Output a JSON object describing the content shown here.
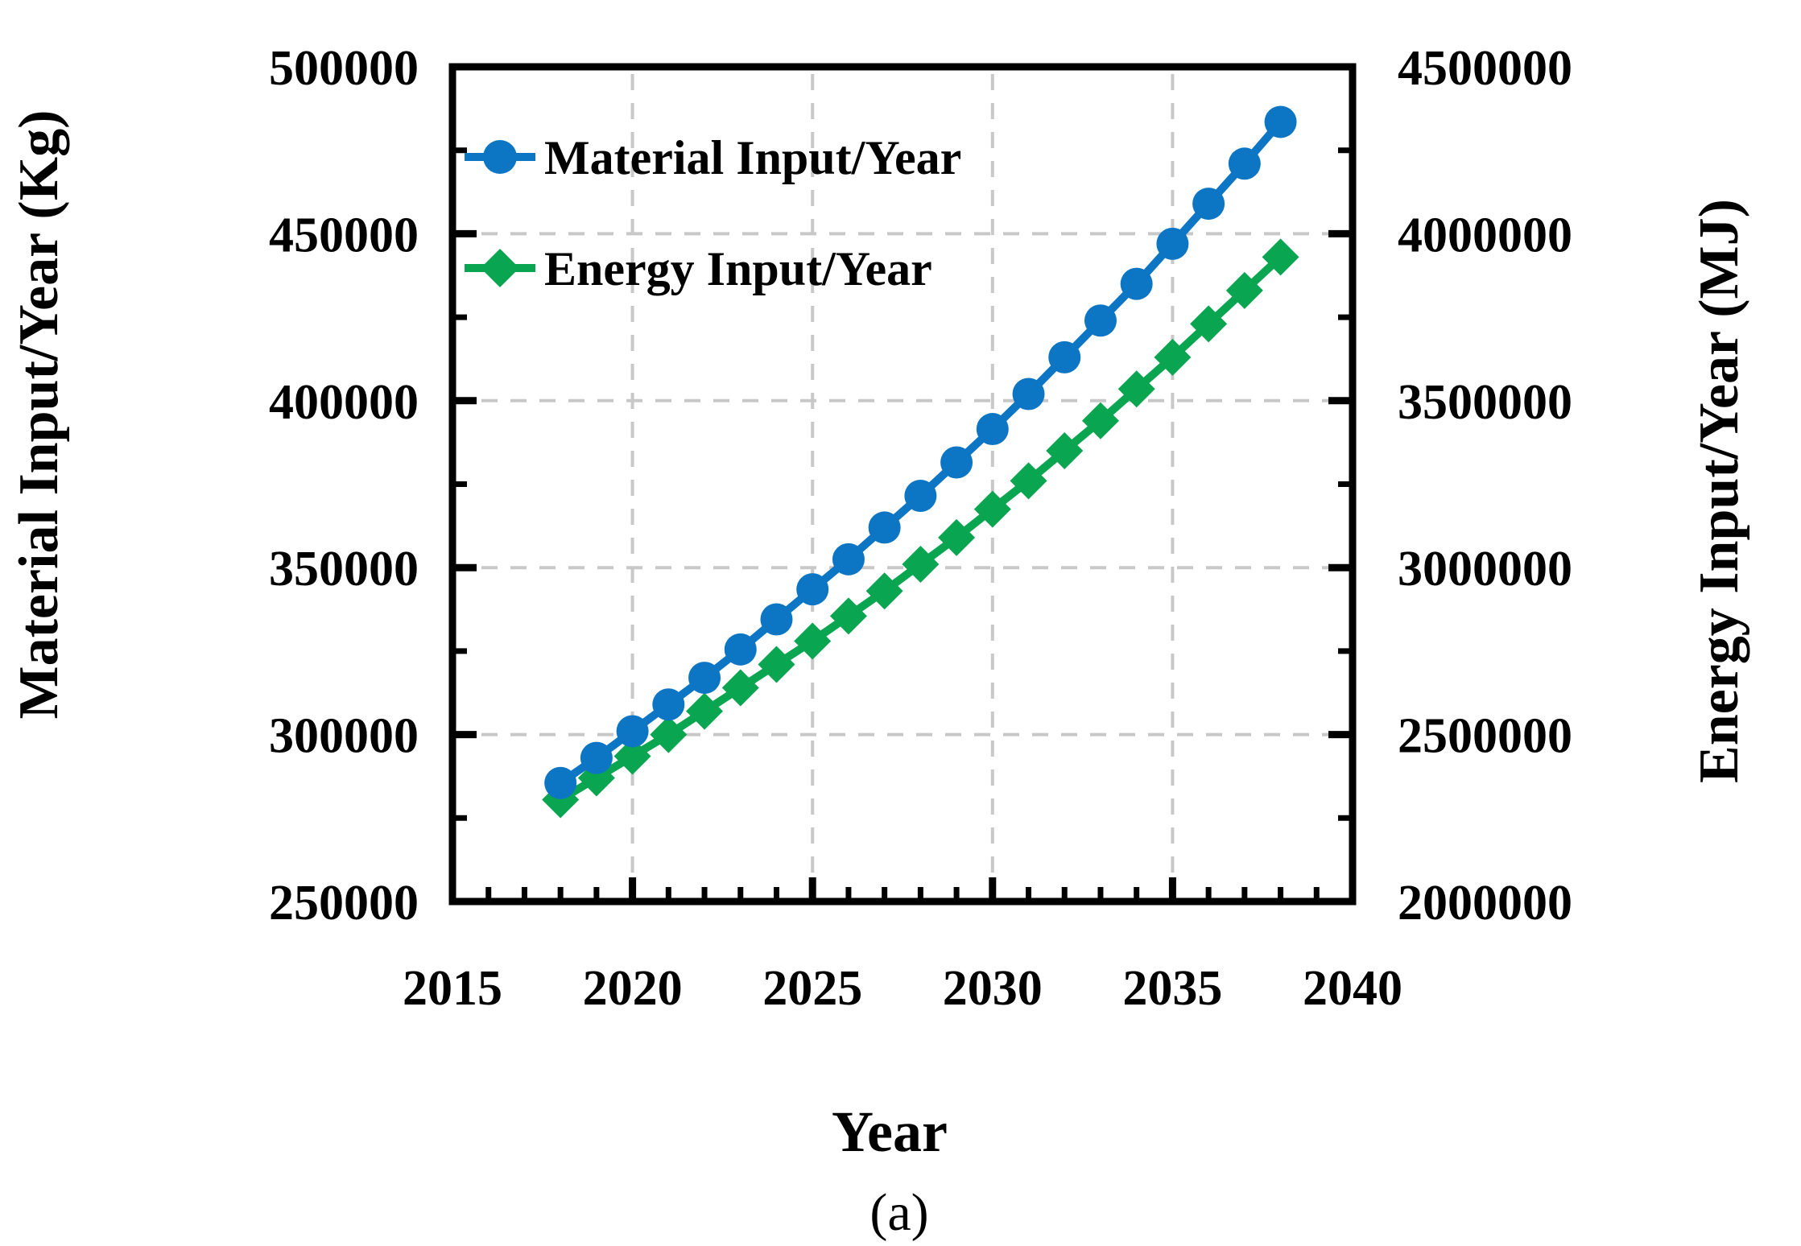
{
  "figure": {
    "caption": "(a)"
  },
  "chart_data": {
    "type": "line",
    "title": "",
    "xlabel": "Year",
    "ylabel_left": "Material Input/Year (Kg)",
    "ylabel_right": "Energy Input/Year (MJ)",
    "x": [
      2018,
      2019,
      2020,
      2021,
      2022,
      2023,
      2024,
      2025,
      2026,
      2027,
      2028,
      2029,
      2030,
      2031,
      2032,
      2033,
      2034,
      2035,
      2036,
      2037,
      2038
    ],
    "series": [
      {
        "name": "Material Input/Year",
        "axis": "left",
        "unit": "Kg",
        "color": "#0d76c4",
        "marker": "circle",
        "values": [
          285500,
          293000,
          301000,
          309000,
          317000,
          325500,
          334500,
          343500,
          352500,
          362000,
          371500,
          381500,
          391500,
          402000,
          413000,
          424000,
          435000,
          447000,
          459000,
          471000,
          483500
        ]
      },
      {
        "name": "Energy Input/Year",
        "axis": "right",
        "unit": "MJ",
        "color": "#0aa551",
        "marker": "diamond",
        "values": [
          2305000,
          2370000,
          2435000,
          2500000,
          2570000,
          2640000,
          2710000,
          2780000,
          2855000,
          2930000,
          3010000,
          3090000,
          3175000,
          3260000,
          3350000,
          3440000,
          3535000,
          3630000,
          3730000,
          3830000,
          3930000
        ]
      }
    ],
    "x_axis": {
      "min": 2015,
      "max": 2040,
      "major_step": 5,
      "minor_step": 1,
      "tick_labels": [
        "2015",
        "2020",
        "2025",
        "2030",
        "2035",
        "2040"
      ]
    },
    "y_left": {
      "min": 250000,
      "max": 500000,
      "major_step": 50000,
      "minor_step": 25000,
      "tick_labels": [
        "250000",
        "300000",
        "350000",
        "400000",
        "450000",
        "500000"
      ]
    },
    "y_right": {
      "min": 2000000,
      "max": 4500000,
      "major_step": 500000,
      "minor_step": 250000,
      "tick_labels": [
        "2000000",
        "2500000",
        "3000000",
        "3500000",
        "4000000",
        "4500000"
      ]
    },
    "grid": {
      "show": true,
      "color": "#c8c8c8",
      "dash": "20 16",
      "x_values": [
        2020,
        2025,
        2030,
        2035
      ],
      "y_values_left": [
        300000,
        350000,
        400000,
        450000
      ]
    },
    "legend": {
      "position": "upper-left-inside",
      "entries": [
        "Material Input/Year",
        "Energy Input/Year"
      ]
    },
    "colors": {
      "axis": "#000000",
      "background": "#ffffff"
    }
  }
}
